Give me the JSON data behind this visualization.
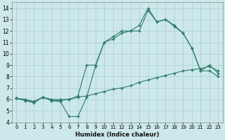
{
  "xlabel": "Humidex (Indice chaleur)",
  "bg_color": "#cce8ea",
  "grid_color": "#aacdd0",
  "line_color": "#2d7a6a",
  "xlim": [
    -0.5,
    23.5
  ],
  "ylim": [
    4,
    14.5
  ],
  "xticks": [
    0,
    1,
    2,
    3,
    4,
    5,
    6,
    7,
    8,
    9,
    10,
    11,
    12,
    13,
    14,
    15,
    16,
    17,
    18,
    19,
    20,
    21,
    22,
    23
  ],
  "yticks": [
    4,
    5,
    6,
    7,
    8,
    9,
    10,
    11,
    12,
    13,
    14
  ],
  "line1_x": [
    0,
    1,
    2,
    3,
    4,
    5,
    6,
    7,
    8,
    9,
    10,
    11,
    12,
    13,
    14,
    15,
    16,
    17,
    18,
    19,
    20,
    21,
    22,
    23
  ],
  "line1_y": [
    6.1,
    5.9,
    5.7,
    6.2,
    5.9,
    5.8,
    4.5,
    4.5,
    6.2,
    8.9,
    11.0,
    11.5,
    12.0,
    12.0,
    12.0,
    13.8,
    12.8,
    13.0,
    12.5,
    11.8,
    10.5,
    8.5,
    8.5,
    8.0
  ],
  "line2_x": [
    0,
    1,
    2,
    3,
    4,
    5,
    6,
    7,
    8,
    9,
    10,
    11,
    12,
    13,
    14,
    15,
    16,
    17,
    18,
    19,
    20,
    21,
    22,
    23
  ],
  "line2_y": [
    6.1,
    6.0,
    5.8,
    6.2,
    6.0,
    6.0,
    6.0,
    6.2,
    6.3,
    6.5,
    6.7,
    6.9,
    7.0,
    7.2,
    7.5,
    7.7,
    7.9,
    8.1,
    8.3,
    8.5,
    8.6,
    8.7,
    8.9,
    8.5
  ],
  "line3_x": [
    0,
    1,
    2,
    3,
    4,
    5,
    6,
    7,
    8,
    9,
    10,
    11,
    12,
    13,
    14,
    15,
    16,
    17,
    18,
    19,
    20,
    21,
    22,
    23
  ],
  "line3_y": [
    6.1,
    5.9,
    5.8,
    6.2,
    5.9,
    5.9,
    6.0,
    6.3,
    9.0,
    9.0,
    11.0,
    11.3,
    11.8,
    12.0,
    12.5,
    14.0,
    12.8,
    13.0,
    12.4,
    11.8,
    10.5,
    8.5,
    9.0,
    8.3
  ]
}
